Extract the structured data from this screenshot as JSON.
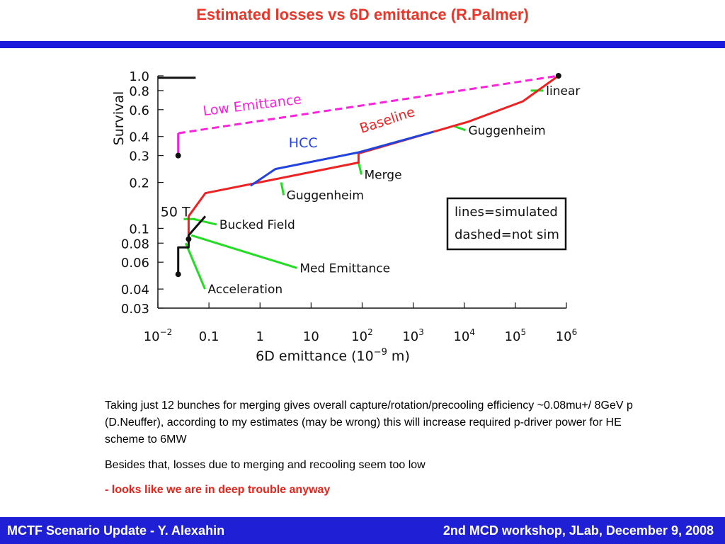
{
  "slide": {
    "title": "Estimated losses vs 6D emittance (R.Palmer)",
    "para1": "Taking just 12 bunches for merging gives overall capture/rotation/precooling efficiency ~0.08mu+/ 8GeV p (D.Neuffer), according to my estimates (may be wrong) this will increase required p-driver power for HE scheme to 6MW",
    "para2": "Besides that, losses due to merging and recooling seem too low",
    "para3": "- looks like we are in deep trouble anyway"
  },
  "footer": {
    "left": "MCTF Scenario Update - Y. Alexahin",
    "right": "2nd MCD workshop, JLab, December 9, 2008"
  },
  "colors": {
    "title": "#e8372a",
    "bar": "#1a1adb",
    "emphasis": "#e8241a",
    "baseline": "#ee2222",
    "hcc": "#2244dd",
    "low_emittance": "#ff22dd",
    "annotation": "#22dd22"
  },
  "chart_data": {
    "type": "line",
    "xscale": "log",
    "yscale": "log",
    "xlim": [
      0.01,
      1000000
    ],
    "ylim": [
      0.03,
      1.0
    ],
    "x_tick_values": [
      0.01,
      0.1,
      1,
      10,
      100,
      1000,
      10000,
      100000,
      1000000
    ],
    "x_tick_labels": [
      {
        "base": "10",
        "sup": "−2"
      },
      {
        "base": "0.1",
        "sup": ""
      },
      {
        "base": "1",
        "sup": ""
      },
      {
        "base": "10",
        "sup": ""
      },
      {
        "base": "10",
        "sup": "2"
      },
      {
        "base": "10",
        "sup": "3"
      },
      {
        "base": "10",
        "sup": "4"
      },
      {
        "base": "10",
        "sup": "5"
      },
      {
        "base": "10",
        "sup": "6"
      }
    ],
    "y_tick_values": [
      1.0,
      0.8,
      0.6,
      0.4,
      0.3,
      0.2,
      0.1,
      0.08,
      0.06,
      0.04,
      0.03
    ],
    "y_tick_labels": [
      "1.0",
      "0.8",
      "0.6",
      "0.4",
      "0.3",
      "0.2",
      "0.1",
      "0.08",
      "0.06",
      "0.04",
      "0.03"
    ],
    "ylabel": "Survival",
    "xlabel": {
      "pre": "6D emittance (10",
      "sup": "−9",
      "post": " m)"
    },
    "legend_box": {
      "line1": "lines=simulated",
      "line2": "dashed=not sim"
    },
    "series": [
      {
        "key": "baseline",
        "name": "Baseline",
        "color": "#ee2222",
        "dashed": false,
        "x": [
          0.04,
          0.04,
          0.085,
          85,
          85,
          12000,
          140000,
          700000
        ],
        "y": [
          0.09,
          0.12,
          0.17,
          0.27,
          0.31,
          0.5,
          0.68,
          1.0
        ]
      },
      {
        "key": "hcc",
        "name": "HCC",
        "color": "#2244dd",
        "dashed": false,
        "x": [
          0.65,
          2,
          85,
          2500
        ],
        "y": [
          0.19,
          0.245,
          0.315,
          0.43
        ]
      },
      {
        "key": "low",
        "name": "Low Emittance",
        "color": "#ff22dd",
        "dashed": true,
        "x": [
          0.025,
          700000
        ],
        "y": [
          0.42,
          1.0
        ]
      },
      {
        "key": "low_vert",
        "name": "",
        "color": "#ee22dd",
        "dashed": false,
        "x": [
          0.025,
          0.025
        ],
        "y": [
          0.3,
          0.42
        ]
      },
      {
        "key": "med",
        "name": "",
        "color": "#111111",
        "dashed": false,
        "x": [
          0.025,
          0.025,
          0.04,
          0.04,
          0.085
        ],
        "y": [
          0.05,
          0.075,
          0.075,
          0.09,
          0.12
        ]
      },
      {
        "key": "top",
        "name": "",
        "color": "#111111",
        "dashed": false,
        "x": [
          0.01,
          0.055
        ],
        "y": [
          0.97,
          0.97
        ]
      }
    ],
    "markers": [
      {
        "x": 700000,
        "y": 1.0
      },
      {
        "x": 0.025,
        "y": 0.3
      },
      {
        "x": 0.04,
        "y": 0.085
      },
      {
        "x": 0.025,
        "y": 0.05
      }
    ],
    "annotations": [
      {
        "text": "linear",
        "x": 200000,
        "y": 0.8,
        "tx": 400000,
        "ty": 0.8
      },
      {
        "text": "Guggenheim",
        "x": 6000,
        "y": 0.47,
        "tx": 12000,
        "ty": 0.44
      },
      {
        "text": "Merge",
        "x": 85,
        "y": 0.27,
        "tx": 110,
        "ty": 0.225
      },
      {
        "text": "Guggenheim",
        "x": 2.6,
        "y": 0.2,
        "tx": 3.3,
        "ty": 0.165
      },
      {
        "text": "Bucked Field",
        "x": 0.05,
        "y": 0.115,
        "tx": 0.16,
        "ty": 0.106
      },
      {
        "text": "Med Emittance",
        "x": 0.045,
        "y": 0.09,
        "tx": 6,
        "ty": 0.055
      },
      {
        "text": "Acceleration",
        "x": 0.035,
        "y": 0.08,
        "tx": 0.095,
        "ty": 0.04
      }
    ],
    "series_labels": [
      {
        "text": "Low Emittance",
        "x": 0.72,
        "y": 0.6,
        "rotate": -7,
        "color": "#ff22dd"
      },
      {
        "text": "Baseline",
        "x": 330,
        "y": 0.48,
        "rotate": -18,
        "color": "#ee2222"
      },
      {
        "text": "HCC",
        "x": 7,
        "y": 0.34,
        "rotate": 0,
        "color": "#2244dd"
      },
      {
        "text": "50 T",
        "x": 0.022,
        "y": 0.12,
        "rotate": 0,
        "color": "#111111"
      }
    ]
  }
}
